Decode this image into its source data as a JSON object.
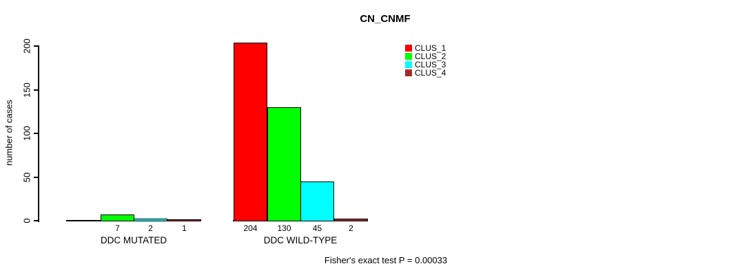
{
  "chart_data": {
    "type": "bar",
    "title": "CN_CNMF",
    "ylabel": "number of cases",
    "xlabel": "",
    "ylim": [
      0,
      200
    ],
    "yticks": [
      0,
      50,
      100,
      150,
      200
    ],
    "grid": false,
    "legend_position": "top-right",
    "categories": [
      "DDC MUTATED",
      "DDC WILD-TYPE"
    ],
    "series": [
      {
        "name": "CLUS_1",
        "color": "#ff0000",
        "values": [
          0,
          204
        ]
      },
      {
        "name": "CLUS_2",
        "color": "#00ff00",
        "values": [
          7,
          130
        ]
      },
      {
        "name": "CLUS_3",
        "color": "#00ffff",
        "values": [
          2,
          45
        ]
      },
      {
        "name": "CLUS_4",
        "color": "#a52a2a",
        "values": [
          1,
          2
        ]
      }
    ],
    "value_labels": [
      [
        "",
        "7",
        "2",
        "1"
      ],
      [
        "204",
        "130",
        "45",
        "2"
      ]
    ],
    "annotation": "Fisher's exact test P = 0.00033",
    "axis_color": "#000000",
    "background_color": "#ffffff"
  }
}
